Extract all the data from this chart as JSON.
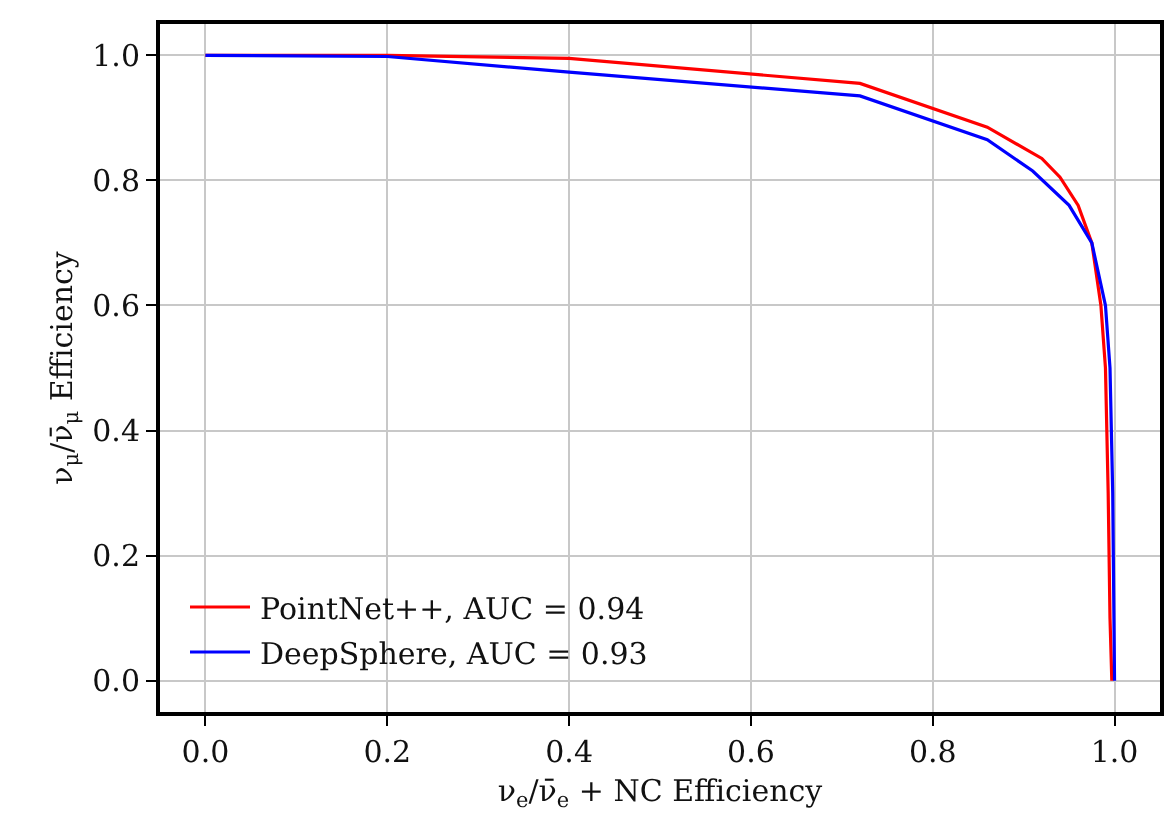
{
  "chart_data": {
    "type": "line",
    "xlabel": "ν$_{e}$/ν̄$_{e}$ + NC Efficiency",
    "ylabel": "ν$_{μ}$/ν̄$_{μ}$ Efficiency",
    "series": [
      {
        "name": "PointNet++, AUC = 0.94",
        "color": "#ff0000",
        "x": [
          0,
          0.2,
          0.4,
          0.72,
          0.86,
          0.92,
          0.94,
          0.96,
          0.975,
          0.985,
          0.99,
          0.993,
          0.995,
          0.997
        ],
        "values": [
          1,
          1,
          0.995,
          0.955,
          0.885,
          0.835,
          0.805,
          0.76,
          0.7,
          0.6,
          0.5,
          0.3,
          0.1,
          0
        ]
      },
      {
        "name": "DeepSphere, AUC = 0.93",
        "color": "#0000ff",
        "x": [
          0,
          0.2,
          0.4,
          0.72,
          0.86,
          0.91,
          0.95,
          0.975,
          0.99,
          0.995,
          0.998,
          1.0
        ],
        "values": [
          1,
          0.998,
          0.973,
          0.935,
          0.865,
          0.815,
          0.76,
          0.7,
          0.6,
          0.5,
          0.3,
          0
        ]
      }
    ],
    "xlim": [
      -0.05,
      1.05
    ],
    "ylim": [
      -0.05,
      1.05
    ],
    "xticks": [
      {
        "value": 0,
        "label": "0.0"
      },
      0.2,
      0.4,
      0.6,
      0.8,
      {
        "value": 1,
        "label": "1.0"
      }
    ],
    "yticks": [
      {
        "value": 0,
        "label": "0.0"
      },
      0.2,
      0.4,
      0.6,
      0.8,
      {
        "value": 1,
        "label": "1.0"
      }
    ],
    "grid": true,
    "legend": "bottom left",
    "marker": "none",
    "line_style": "solid"
  }
}
